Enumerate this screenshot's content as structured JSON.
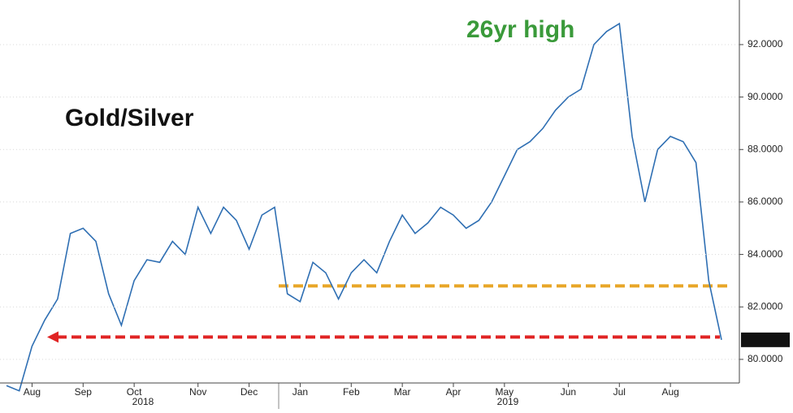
{
  "chart_data": {
    "type": "line",
    "annotations": [
      "Gold/Silver",
      "26yr high"
    ],
    "categories": [
      null,
      null,
      "Aug",
      null,
      null,
      null,
      "Sep",
      null,
      null,
      null,
      "Oct",
      null,
      null,
      null,
      null,
      "Nov",
      null,
      null,
      null,
      "Dec",
      null,
      null,
      null,
      "Jan",
      null,
      null,
      null,
      "Feb",
      null,
      null,
      null,
      "Mar",
      null,
      null,
      null,
      "Apr",
      null,
      null,
      null,
      "May",
      null,
      null,
      null,
      null,
      "Jun",
      null,
      null,
      null,
      "Jul",
      null,
      null,
      null,
      "Aug",
      null,
      null,
      null,
      null
    ],
    "year_labels": [
      "2018",
      "2019"
    ],
    "series": [
      {
        "color": "#2f6fb3",
        "values": [
          79.0,
          78.8,
          80.5,
          81.5,
          82.3,
          84.8,
          85.0,
          84.5,
          82.5,
          81.3,
          83.0,
          83.8,
          83.7,
          84.5,
          84.0,
          85.8,
          84.8,
          85.8,
          85.3,
          84.2,
          85.5,
          85.8,
          82.5,
          82.2,
          83.7,
          83.3,
          82.3,
          83.3,
          83.8,
          83.3,
          84.5,
          85.5,
          84.8,
          85.2,
          85.8,
          85.5,
          85.0,
          85.3,
          86.0,
          87.0,
          88.0,
          88.3,
          88.8,
          89.5,
          90.0,
          90.3,
          92.0,
          92.5,
          92.8,
          88.5,
          86.0,
          88.0,
          88.5,
          88.3,
          87.5,
          83.0,
          80.7448
        ]
      }
    ],
    "last_value": 80.7448,
    "hlines": [
      {
        "value": 82.8,
        "color": "#e8a628"
      },
      {
        "value": 80.85,
        "color": "#e02424"
      }
    ],
    "ylim": [
      79.1,
      93.7
    ],
    "yticks": [
      {
        "value": 80,
        "label": "80.0000"
      },
      {
        "value": 82,
        "label": "82.0000"
      },
      {
        "value": 84,
        "label": "84.0000"
      },
      {
        "value": 86,
        "label": "86.0000"
      },
      {
        "value": 88,
        "label": "88.0000"
      },
      {
        "value": 90,
        "label": "90.0000"
      },
      {
        "value": 92,
        "label": "92.0000"
      }
    ],
    "grid": true
  }
}
